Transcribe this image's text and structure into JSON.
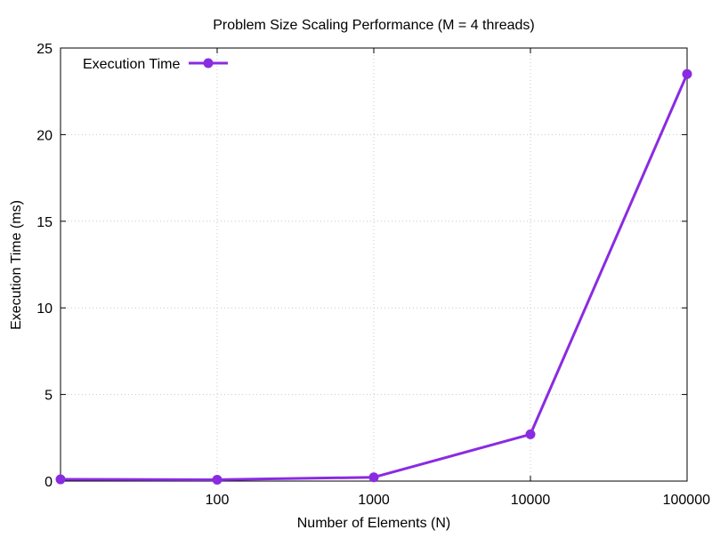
{
  "chart_data": {
    "type": "line",
    "title": "Problem Size Scaling Performance (M = 4 threads)",
    "xlabel": "Number of Elements (N)",
    "ylabel": "Execution Time (ms)",
    "x_scale": "log10",
    "xlim": [
      10,
      100000
    ],
    "ylim": [
      0,
      25
    ],
    "x_ticks": [
      100,
      1000,
      10000,
      100000
    ],
    "x_tick_labels": [
      "100",
      "1000",
      "10000",
      "100000"
    ],
    "y_ticks": [
      0,
      5,
      10,
      15,
      20,
      25
    ],
    "y_tick_labels": [
      "0",
      "5",
      "10",
      "15",
      "20",
      "25"
    ],
    "grid": true,
    "legend_position": "top-left",
    "series": [
      {
        "name": "Execution Time",
        "color": "#8a2be2",
        "marker": "circle",
        "x": [
          10,
          100,
          1000,
          10000,
          100000
        ],
        "y": [
          0.1,
          0.08,
          0.22,
          2.7,
          23.5
        ]
      }
    ]
  }
}
